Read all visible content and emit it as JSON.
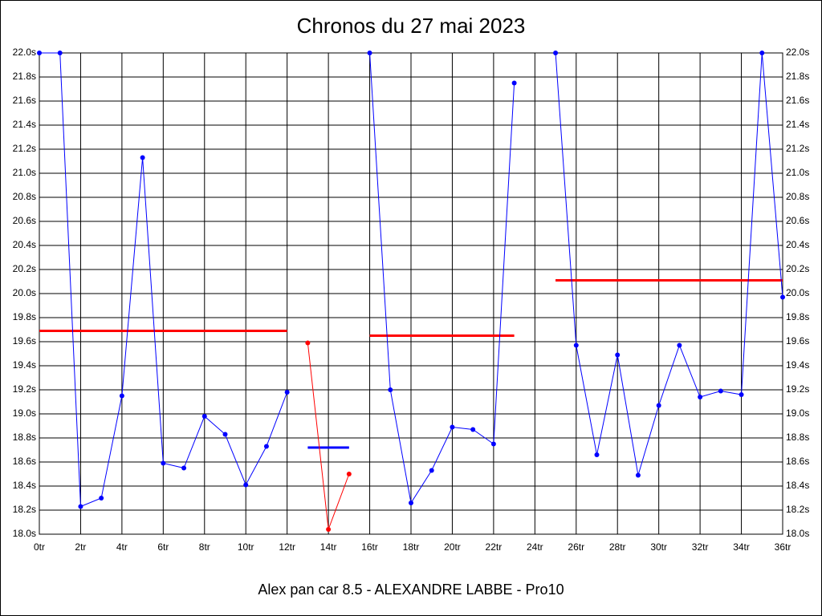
{
  "chart_data": {
    "type": "line",
    "title": "Chronos du 27 mai 2023",
    "xlabel": "Alex pan car 8.5 - ALEXANDRE LABBE - Pro10",
    "x": [
      0,
      1,
      2,
      3,
      4,
      5,
      6,
      7,
      8,
      9,
      10,
      11,
      12,
      13,
      14,
      15,
      16,
      17,
      18,
      19,
      20,
      21,
      22,
      23,
      24,
      25,
      26,
      27,
      28,
      29,
      30,
      31,
      32,
      33,
      34,
      35,
      36
    ],
    "series": [
      {
        "color": "#0000ff",
        "values": [
          22.0,
          22.0,
          18.23,
          18.3,
          19.15,
          21.13,
          18.59,
          18.55,
          18.98,
          18.83,
          18.41,
          18.73,
          19.18,
          null,
          null,
          null,
          22.0,
          19.2,
          18.26,
          18.53,
          18.89,
          18.87,
          18.75,
          21.75,
          null,
          22.0,
          19.57,
          18.66,
          19.49,
          18.49,
          19.07,
          19.57,
          19.14,
          19.19,
          19.16,
          22.0,
          19.97
        ]
      },
      {
        "color": "#ff0000",
        "values": [
          null,
          null,
          null,
          null,
          null,
          null,
          null,
          null,
          null,
          null,
          null,
          null,
          null,
          19.59,
          18.04,
          18.5,
          null,
          null,
          null,
          null,
          null,
          null,
          null,
          null,
          null,
          null,
          null,
          null,
          null,
          null,
          null,
          null,
          null,
          null,
          null,
          null,
          null
        ]
      }
    ],
    "averages": [
      {
        "color": "#ff0000",
        "start": 0,
        "end": 12,
        "value": 19.69
      },
      {
        "color": "#0000ff",
        "start": 13,
        "end": 15,
        "value": 18.72
      },
      {
        "color": "#ff0000",
        "start": 16,
        "end": 23,
        "value": 19.65
      },
      {
        "color": "#ff0000",
        "start": 25,
        "end": 36,
        "value": 20.11
      }
    ],
    "xlim": [
      0,
      36
    ],
    "ylim": [
      18.0,
      22.0
    ],
    "xticks": [
      {
        "value": 0,
        "label": "0tr"
      },
      {
        "value": 2,
        "label": "2tr"
      },
      {
        "value": 4,
        "label": "4tr"
      },
      {
        "value": 6,
        "label": "6tr"
      },
      {
        "value": 8,
        "label": "8tr"
      },
      {
        "value": 10,
        "label": "10tr"
      },
      {
        "value": 12,
        "label": "12tr"
      },
      {
        "value": 14,
        "label": "14tr"
      },
      {
        "value": 16,
        "label": "16tr"
      },
      {
        "value": 18,
        "label": "18tr"
      },
      {
        "value": 20,
        "label": "20tr"
      },
      {
        "value": 22,
        "label": "22tr"
      },
      {
        "value": 24,
        "label": "24tr"
      },
      {
        "value": 26,
        "label": "26tr"
      },
      {
        "value": 28,
        "label": "28tr"
      },
      {
        "value": 30,
        "label": "30tr"
      },
      {
        "value": 32,
        "label": "32tr"
      },
      {
        "value": 34,
        "label": "34tr"
      },
      {
        "value": 36,
        "label": "36tr"
      }
    ],
    "yticks": [
      {
        "value": 18.0,
        "label": "18.0s"
      },
      {
        "value": 18.2,
        "label": "18.2s"
      },
      {
        "value": 18.4,
        "label": "18.4s"
      },
      {
        "value": 18.6,
        "label": "18.6s"
      },
      {
        "value": 18.8,
        "label": "18.8s"
      },
      {
        "value": 19.0,
        "label": "19.0s"
      },
      {
        "value": 19.2,
        "label": "19.2s"
      },
      {
        "value": 19.4,
        "label": "19.4s"
      },
      {
        "value": 19.6,
        "label": "19.6s"
      },
      {
        "value": 19.8,
        "label": "19.8s"
      },
      {
        "value": 20.0,
        "label": "20.0s"
      },
      {
        "value": 20.2,
        "label": "20.2s"
      },
      {
        "value": 20.4,
        "label": "20.4s"
      },
      {
        "value": 20.6,
        "label": "20.6s"
      },
      {
        "value": 20.8,
        "label": "20.8s"
      },
      {
        "value": 21.0,
        "label": "21.0s"
      },
      {
        "value": 21.2,
        "label": "21.2s"
      },
      {
        "value": 21.4,
        "label": "21.4s"
      },
      {
        "value": 21.6,
        "label": "21.6s"
      },
      {
        "value": 21.8,
        "label": "21.8s"
      },
      {
        "value": 22.0,
        "label": "22.0s"
      }
    ],
    "grid": true
  }
}
